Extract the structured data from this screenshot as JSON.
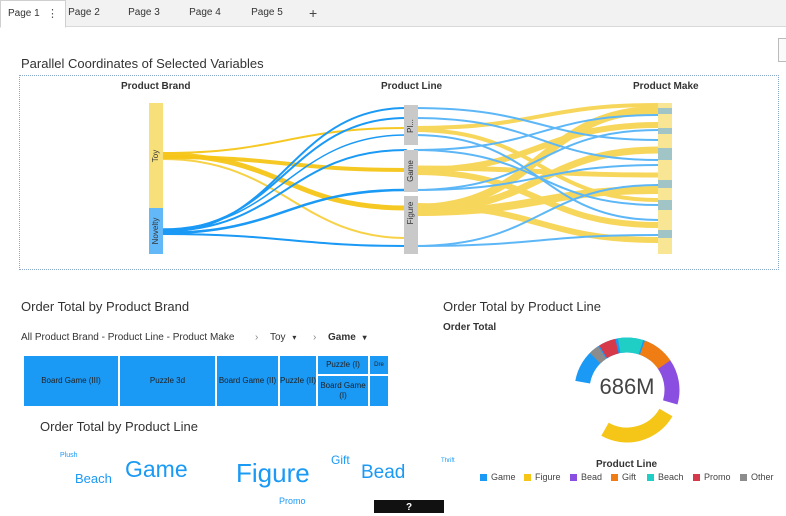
{
  "tabs": [
    {
      "label": "Page 1",
      "active": true
    },
    {
      "label": "Page 2"
    },
    {
      "label": "Page 3"
    },
    {
      "label": "Page 4"
    },
    {
      "label": "Page 5"
    }
  ],
  "tab_menu_icon": "vertical-dots-icon",
  "add_tab": "+",
  "parallel": {
    "title": "Parallel Coordinates of Selected Variables",
    "axes": [
      "Product Brand",
      "Product Line",
      "Product Make"
    ],
    "brand_nodes": [
      "Toy",
      "Novelty"
    ],
    "line_nodes": [
      "Pl...",
      "Game",
      "Figure"
    ]
  },
  "treemap": {
    "title": "Order Total by Product Brand",
    "breadcrumb_root": "All Product Brand - Product Line - Product Make",
    "breadcrumb_sep": "›",
    "crumb_toy": "Toy",
    "crumb_game": "Game",
    "dropdown_glyph": "▾",
    "tiles": [
      "Board Game (III)",
      "Puzzle 3d",
      "Board Game (II)",
      "Puzzle (II)",
      "Puzzle (I)",
      "Board Game (I)",
      "Dre"
    ]
  },
  "wordcloud": {
    "title": "Order Total by Product Line",
    "words": [
      "Plush",
      "Beach",
      "Game",
      "Figure",
      "Gift",
      "Bead",
      "Thrift",
      "Promo"
    ]
  },
  "donut": {
    "title": "Order Total by Product Line",
    "subtitle": "Order Total",
    "center_value": "686M",
    "legend_title": "Product Line",
    "legend": [
      {
        "label": "Game",
        "color": "#1a99f5"
      },
      {
        "label": "Figure",
        "color": "#f5c518"
      },
      {
        "label": "Bead",
        "color": "#8a4fe0"
      },
      {
        "label": "Gift",
        "color": "#f07c14"
      },
      {
        "label": "Beach",
        "color": "#1fcfc6"
      },
      {
        "label": "Promo",
        "color": "#d63a4a"
      },
      {
        "label": "Other",
        "color": "#8c8c8c"
      }
    ]
  },
  "help_button": "?",
  "colors": {
    "blue": "#1a99f5",
    "yellow": "#f5c518"
  }
}
